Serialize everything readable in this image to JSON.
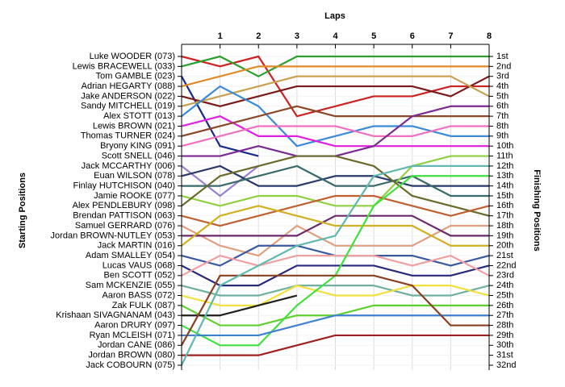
{
  "chart_data": {
    "type": "line",
    "x_label": "Laps",
    "y_label": "Starting Positions",
    "y2_label": "Finishing Positions",
    "x": [
      0,
      1,
      2,
      3,
      4,
      5,
      6,
      7,
      8
    ],
    "xlim": [
      0,
      8
    ],
    "xticks": [
      1,
      2,
      3,
      4,
      5,
      6,
      7,
      8
    ],
    "ylim": [
      1,
      32
    ],
    "y_inverted": true,
    "grid": true,
    "yticks": [
      {
        "value": 1,
        "label": "Luke WOODER (073)"
      },
      {
        "value": 2,
        "label": "Lewis BRACEWELL (033)"
      },
      {
        "value": 3,
        "label": "Tom GAMBLE (023)"
      },
      {
        "value": 4,
        "label": "Adrian HEGARTY (088)"
      },
      {
        "value": 5,
        "label": "Jake ANDERSON (022)"
      },
      {
        "value": 6,
        "label": "Sandy MITCHELL (019)"
      },
      {
        "value": 7,
        "label": "Alex STOTT (013)"
      },
      {
        "value": 8,
        "label": "Lewis BROWN (021)"
      },
      {
        "value": 9,
        "label": "Thomas TURNER (024)"
      },
      {
        "value": 10,
        "label": "Bryony KING (091)"
      },
      {
        "value": 11,
        "label": "Scott SNELL (046)"
      },
      {
        "value": 12,
        "label": "Jack MCCARTHY (006)"
      },
      {
        "value": 13,
        "label": "Euan WILSON (078)"
      },
      {
        "value": 14,
        "label": "Finlay HUTCHISON (040)"
      },
      {
        "value": 15,
        "label": "Jamie ROOKE (077)"
      },
      {
        "value": 16,
        "label": "Alex PENDLEBURY (098)"
      },
      {
        "value": 17,
        "label": "Brendan PATTISON (063)"
      },
      {
        "value": 18,
        "label": "Samuel GERRARD (076)"
      },
      {
        "value": 19,
        "label": "Jordan BROWN-NUTLEY (053)"
      },
      {
        "value": 20,
        "label": "Jack MARTIN (016)"
      },
      {
        "value": 21,
        "label": "Adam SMALLEY (054)"
      },
      {
        "value": 22,
        "label": "Lucas VAUS (068)"
      },
      {
        "value": 23,
        "label": "Ben SCOTT (052)"
      },
      {
        "value": 24,
        "label": "Sam MCKENZIE (055)"
      },
      {
        "value": 25,
        "label": "Aaron BASS (072)"
      },
      {
        "value": 26,
        "label": "Zak FULK (087)"
      },
      {
        "value": 27,
        "label": "Krishaan SIVAGNANAM (043)"
      },
      {
        "value": 28,
        "label": "Aaron DRURY (097)"
      },
      {
        "value": 29,
        "label": "Ryan MCLEISH (071)"
      },
      {
        "value": 30,
        "label": "Jordan CANE (086)"
      },
      {
        "value": 31,
        "label": "Jordan BROWN (080)"
      },
      {
        "value": 32,
        "label": "Jack COBOURN (075)"
      }
    ],
    "y2ticks": [
      {
        "value": 1,
        "label": "1st"
      },
      {
        "value": 2,
        "label": "2nd"
      },
      {
        "value": 3,
        "label": "3rd"
      },
      {
        "value": 4,
        "label": "4th"
      },
      {
        "value": 5,
        "label": "5th"
      },
      {
        "value": 6,
        "label": "6th"
      },
      {
        "value": 7,
        "label": "7th"
      },
      {
        "value": 8,
        "label": "8th"
      },
      {
        "value": 9,
        "label": "9th"
      },
      {
        "value": 10,
        "label": "10th"
      },
      {
        "value": 11,
        "label": "11th"
      },
      {
        "value": 12,
        "label": "12th"
      },
      {
        "value": 13,
        "label": "13th"
      },
      {
        "value": 14,
        "label": "14th"
      },
      {
        "value": 15,
        "label": "15th"
      },
      {
        "value": 16,
        "label": "16th"
      },
      {
        "value": 17,
        "label": "17th"
      },
      {
        "value": 18,
        "label": "18th"
      },
      {
        "value": 19,
        "label": "19th"
      },
      {
        "value": 20,
        "label": "20th"
      },
      {
        "value": 21,
        "label": "21st"
      },
      {
        "value": 22,
        "label": "22nd"
      },
      {
        "value": 23,
        "label": "23rd"
      },
      {
        "value": 24,
        "label": "24th"
      },
      {
        "value": 25,
        "label": "25th"
      },
      {
        "value": 26,
        "label": "26th"
      },
      {
        "value": 27,
        "label": "27th"
      },
      {
        "value": 28,
        "label": "28th"
      },
      {
        "value": 29,
        "label": "29th"
      },
      {
        "value": 30,
        "label": "30th"
      },
      {
        "value": 31,
        "label": "31st"
      },
      {
        "value": 32,
        "label": "32nd"
      }
    ],
    "series": [
      {
        "color": "#cc2222",
        "values": [
          1,
          2,
          1,
          7,
          6,
          5,
          5,
          4,
          4
        ]
      },
      {
        "color": "#2e9e2e",
        "values": [
          2,
          1,
          3,
          1,
          1,
          1,
          1,
          1,
          1
        ]
      },
      {
        "color": "#1a2a8a",
        "values": [
          3,
          10,
          11,
          null,
          null,
          null,
          null,
          null,
          null
        ]
      },
      {
        "color": "#e08a2a",
        "values": [
          4,
          3,
          2,
          2,
          2,
          2,
          2,
          2,
          2
        ]
      },
      {
        "color": "#7a1a1a",
        "values": [
          5,
          6,
          5,
          4,
          4,
          4,
          4,
          5,
          3
        ]
      },
      {
        "color": "#c8a050",
        "values": [
          6,
          5,
          4,
          3,
          3,
          3,
          3,
          3,
          5
        ]
      },
      {
        "color": "#3a8ad8",
        "values": [
          7,
          4,
          6,
          10,
          9,
          8,
          8,
          9,
          9
        ]
      },
      {
        "color": "#e020e0",
        "values": [
          8,
          7,
          9,
          9,
          10,
          10,
          10,
          10,
          10
        ]
      },
      {
        "color": "#8a4a2a",
        "values": [
          9,
          8,
          7,
          6,
          7,
          7,
          7,
          7,
          7
        ]
      },
      {
        "color": "#f070c0",
        "values": [
          10,
          9,
          8,
          8,
          8,
          9,
          9,
          8,
          8
        ]
      },
      {
        "color": "#7a2a90",
        "values": [
          11,
          11,
          10,
          11,
          11,
          10,
          7,
          6,
          6
        ]
      },
      {
        "color": "#9a80d0",
        "values": [
          12,
          15,
          12,
          null,
          null,
          null,
          null,
          null,
          null
        ]
      },
      {
        "color": "#2a3a6a",
        "values": [
          13,
          12,
          14,
          14,
          13,
          13,
          14,
          14,
          14
        ]
      },
      {
        "color": "#3a6a6a",
        "values": [
          14,
          14,
          13,
          12,
          14,
          14,
          13,
          15,
          15
        ]
      },
      {
        "color": "#90d040",
        "values": [
          15,
          16,
          15,
          15,
          16,
          16,
          12,
          11,
          11
        ]
      },
      {
        "color": "#6a6a2a",
        "values": [
          16,
          13,
          12,
          11,
          11,
          12,
          15,
          16,
          17
        ]
      },
      {
        "color": "#c06030",
        "values": [
          17,
          18,
          17,
          16,
          15,
          15,
          16,
          17,
          16
        ]
      },
      {
        "color": "#e0a080",
        "values": [
          18,
          20,
          21,
          18,
          20,
          20,
          20,
          18,
          18
        ]
      },
      {
        "color": "#6a2a6a",
        "values": [
          19,
          19,
          19,
          19,
          17,
          17,
          17,
          19,
          19
        ]
      },
      {
        "color": "#d0b020",
        "values": [
          20,
          17,
          16,
          17,
          18,
          18,
          18,
          20,
          20
        ]
      },
      {
        "color": "#3a5aa0",
        "values": [
          21,
          22,
          20,
          20,
          21,
          21,
          21,
          22,
          21
        ]
      },
      {
        "color": "#2a2a7a",
        "values": [
          22,
          24,
          24,
          22,
          22,
          22,
          23,
          23,
          22
        ]
      },
      {
        "color": "#f0a0a0",
        "values": [
          23,
          21,
          22,
          21,
          21,
          21,
          22,
          21,
          23
        ]
      },
      {
        "color": "#70b0a0",
        "values": [
          24,
          25,
          25,
          24,
          24,
          24,
          25,
          25,
          24
        ]
      },
      {
        "color": "#f0e040",
        "values": [
          25,
          26,
          26,
          24,
          25,
          25,
          24,
          24,
          25
        ]
      },
      {
        "color": "#60d030",
        "values": [
          26,
          28,
          28,
          27,
          27,
          26,
          26,
          26,
          26
        ]
      },
      {
        "color": "#202020",
        "values": [
          27,
          27,
          26,
          25,
          null,
          null,
          null,
          null,
          null
        ]
      },
      {
        "color": "#40e040",
        "values": [
          28,
          30,
          30,
          26,
          23,
          16,
          13,
          13,
          13
        ]
      },
      {
        "color": "#4080d0",
        "values": [
          29,
          29,
          29,
          28,
          27,
          27,
          27,
          27,
          27
        ]
      },
      {
        "color": "#8a4020",
        "values": [
          30,
          23,
          23,
          23,
          23,
          23,
          24,
          28,
          28
        ]
      },
      {
        "color": "#a02020",
        "values": [
          31,
          31,
          31,
          30,
          29,
          29,
          29,
          29,
          29
        ]
      },
      {
        "color": "#60b8b0",
        "values": [
          32,
          24,
          22,
          20,
          19,
          13,
          12,
          12,
          12
        ]
      }
    ]
  }
}
